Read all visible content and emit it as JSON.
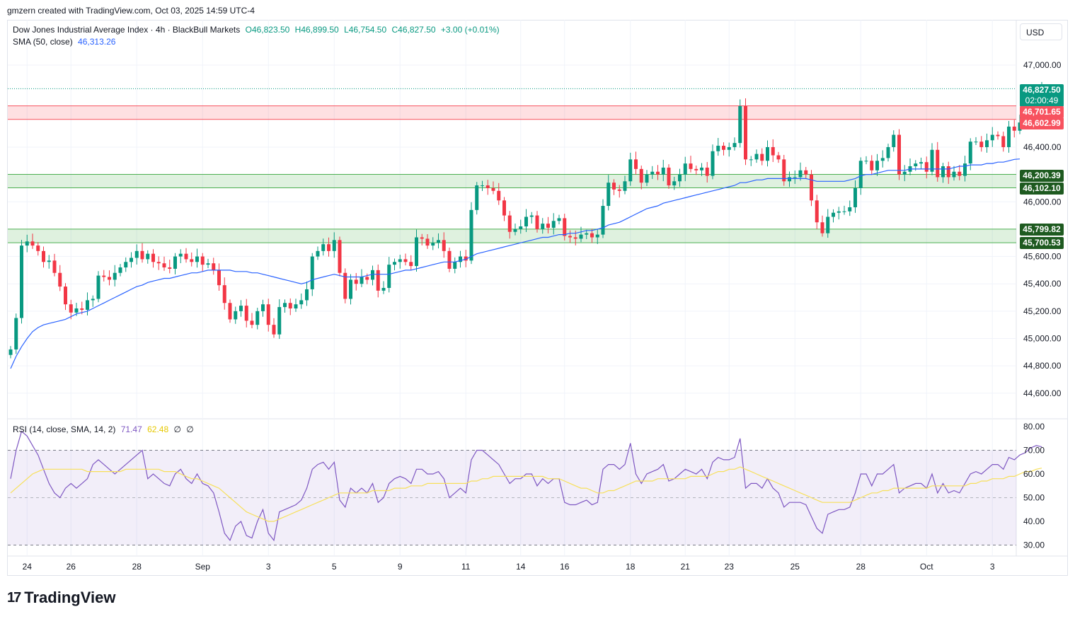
{
  "header": {
    "attribution": "gmzern created with TradingView.com, Oct 03, 2025 14:59 UTC-4"
  },
  "legend": {
    "symbol": "Dow Jones Industrial Average Index · 4h · BlackBull Markets",
    "open": "O46,823.50",
    "high": "H46,899.50",
    "low": "L46,754.50",
    "close": "C46,827.50",
    "change": "+3.00 (+0.01%)",
    "sma_label": "SMA (50, close)",
    "sma_value": "46,313.26",
    "rsi_label": "RSI (14, close, SMA, 14, 2)",
    "rsi_value": "71.47",
    "rsi_sma_value": "62.48",
    "rsi_extra1": "∅",
    "rsi_extra2": "∅"
  },
  "currency": "USD",
  "price_tags": {
    "last_price": "46,827.50",
    "countdown": "02:00:49",
    "res_top": "46,701.65",
    "res_bottom": "46,602.99",
    "sup1_top": "46,200.39",
    "sup1_bottom": "46,102.10",
    "sup2_top": "45,799.82",
    "sup2_bottom": "45,700.53"
  },
  "brand": {
    "name": "TradingView"
  },
  "chart_data": [
    {
      "type": "candlestick",
      "title": "Dow Jones Industrial Average Index · 4h · BlackBull Markets",
      "ylim": [
        44400,
        47200
      ],
      "y_ticks": [
        {
          "value": 47000,
          "label": "47,000.00"
        },
        {
          "value": 46400,
          "label": "46,400.00"
        },
        {
          "value": 46000,
          "label": "46,000.00"
        },
        {
          "value": 45600,
          "label": "45,600.00"
        },
        {
          "value": 45400,
          "label": "45,400.00"
        },
        {
          "value": 45200,
          "label": "45,200.00"
        },
        {
          "value": 45000,
          "label": "45,000.00"
        },
        {
          "value": 44800,
          "label": "44,800.00"
        },
        {
          "value": 44600,
          "label": "44,600.00"
        }
      ],
      "x_ticks": [
        {
          "index": 3,
          "label": "24"
        },
        {
          "index": 11,
          "label": "26"
        },
        {
          "index": 23,
          "label": "28"
        },
        {
          "index": 35,
          "label": "Sep"
        },
        {
          "index": 47,
          "label": "3"
        },
        {
          "index": 59,
          "label": "5"
        },
        {
          "index": 71,
          "label": "9"
        },
        {
          "index": 83,
          "label": "11"
        },
        {
          "index": 93,
          "label": "14"
        },
        {
          "index": 101,
          "label": "16"
        },
        {
          "index": 113,
          "label": "18"
        },
        {
          "index": 123,
          "label": "21"
        },
        {
          "index": 131,
          "label": "23"
        },
        {
          "index": 143,
          "label": "25"
        },
        {
          "index": 155,
          "label": "28"
        },
        {
          "index": 167,
          "label": "Oct"
        },
        {
          "index": 179,
          "label": "3"
        }
      ],
      "bands": [
        {
          "name": "resistance",
          "top": 46701.65,
          "bottom": 46602.99,
          "color": "#f7525f"
        },
        {
          "name": "support-1",
          "top": 46200.39,
          "bottom": 46102.1,
          "color": "#4caf50"
        },
        {
          "name": "support-2",
          "top": 45799.82,
          "bottom": 45700.53,
          "color": "#4caf50"
        }
      ],
      "last_price": 46827.5,
      "up_color": "#089981",
      "down_color": "#f23645",
      "sma_color": "#2962ff",
      "closes": [
        44920,
        45150,
        45680,
        45710,
        45680,
        45640,
        45560,
        45570,
        45480,
        45380,
        45250,
        45190,
        45220,
        45210,
        45280,
        45290,
        45460,
        45450,
        45430,
        45480,
        45520,
        45560,
        45590,
        45640,
        45580,
        45620,
        45560,
        45550,
        45520,
        45510,
        45600,
        45620,
        45580,
        45560,
        45600,
        45540,
        45550,
        45500,
        45390,
        45260,
        45140,
        45200,
        45240,
        45130,
        45100,
        45200,
        45250,
        45100,
        45030,
        45230,
        45260,
        45220,
        45250,
        45280,
        45360,
        45600,
        45640,
        45690,
        45640,
        45720,
        45480,
        45290,
        45430,
        45400,
        45450,
        45430,
        45500,
        45350,
        45370,
        45540,
        45560,
        45580,
        45560,
        45530,
        45740,
        45730,
        45680,
        45700,
        45720,
        45640,
        45510,
        45560,
        45600,
        45570,
        45940,
        46120,
        46120,
        46100,
        46080,
        46010,
        45900,
        45780,
        45800,
        45820,
        45890,
        45900,
        45800,
        45840,
        45810,
        45860,
        45880,
        45750,
        45740,
        45730,
        45760,
        45770,
        45740,
        45760,
        45970,
        46140,
        46090,
        46080,
        46150,
        46310,
        46240,
        46140,
        46200,
        46220,
        46200,
        46250,
        46120,
        46150,
        46200,
        46280,
        46240,
        46230,
        46250,
        46190,
        46370,
        46410,
        46380,
        46400,
        46430,
        46700,
        46310,
        46310,
        46350,
        46300,
        46400,
        46340,
        46310,
        46150,
        46180,
        46180,
        46230,
        46200,
        46010,
        45850,
        45770,
        45890,
        45920,
        45930,
        45930,
        45960,
        46100,
        46300,
        46300,
        46230,
        46300,
        46320,
        46400,
        46490,
        46200,
        46220,
        46260,
        46280,
        46290,
        46220,
        46380,
        46180,
        46260,
        46180,
        46220,
        46190,
        46280,
        46440,
        46440,
        46400,
        46450,
        46490,
        46480,
        46400,
        46550,
        46520,
        46580,
        46620,
        46720,
        46800,
        46827.5
      ],
      "sma": [
        44780,
        44870,
        44940,
        45000,
        45050,
        45080,
        45100,
        45110,
        45120,
        45130,
        45140,
        45160,
        45180,
        45190,
        45200,
        45220,
        45240,
        45260,
        45280,
        45300,
        45320,
        45340,
        45360,
        45380,
        45390,
        45410,
        45420,
        45430,
        45440,
        45440,
        45450,
        45460,
        45470,
        45480,
        45480,
        45490,
        45500,
        45500,
        45500,
        45500,
        45500,
        45490,
        45490,
        45490,
        45480,
        45480,
        45470,
        45460,
        45450,
        45440,
        45430,
        45420,
        45410,
        45400,
        45410,
        45430,
        45440,
        45450,
        45460,
        45470,
        45460,
        45450,
        45450,
        45450,
        45450,
        45460,
        45470,
        45470,
        45470,
        45470,
        45480,
        45490,
        45500,
        45500,
        45510,
        45520,
        45530,
        45540,
        45550,
        45560,
        45560,
        45560,
        45570,
        45580,
        45600,
        45620,
        45630,
        45640,
        45650,
        45660,
        45670,
        45680,
        45690,
        45700,
        45710,
        45720,
        45730,
        45740,
        45740,
        45750,
        45760,
        45760,
        45770,
        45770,
        45780,
        45790,
        45790,
        45800,
        45810,
        45830,
        45840,
        45850,
        45870,
        45890,
        45910,
        45930,
        45950,
        45960,
        45970,
        45990,
        46000,
        46010,
        46020,
        46030,
        46040,
        46050,
        46060,
        46070,
        46080,
        46090,
        46100,
        46110,
        46120,
        46140,
        46140,
        46150,
        46160,
        46160,
        46170,
        46170,
        46170,
        46170,
        46170,
        46170,
        46170,
        46170,
        46160,
        46150,
        46150,
        46150,
        46150,
        46150,
        46150,
        46160,
        46170,
        46190,
        46200,
        46200,
        46210,
        46220,
        46230,
        46230,
        46230,
        46230,
        46240,
        46240,
        46240,
        46240,
        46240,
        46240,
        46240,
        46240,
        46250,
        46260,
        46260,
        46270,
        46270,
        46270,
        46280,
        46280,
        46290,
        46290,
        46300,
        46310,
        46313.26
      ]
    },
    {
      "type": "line",
      "title": "RSI (14, close, SMA, 14, 2)",
      "ylim": [
        26,
        84
      ],
      "y_ticks": [
        {
          "value": 80,
          "label": "80.00"
        },
        {
          "value": 70,
          "label": "70.00"
        },
        {
          "value": 60,
          "label": "60.00"
        },
        {
          "value": 50,
          "label": "50.00"
        },
        {
          "value": 40,
          "label": "40.00"
        },
        {
          "value": 30,
          "label": "30.00"
        }
      ],
      "bands": {
        "upper": 70,
        "lower": 30,
        "middle": 50
      },
      "series": [
        {
          "name": "RSI",
          "color": "#7e57c2",
          "values": [
            58,
            70,
            78,
            76,
            72,
            68,
            62,
            56,
            52,
            50,
            54,
            56,
            54,
            56,
            58,
            64,
            66,
            64,
            62,
            60,
            62,
            64,
            66,
            68,
            70,
            58,
            60,
            58,
            56,
            55,
            60,
            62,
            58,
            56,
            60,
            56,
            55,
            52,
            44,
            35,
            32,
            38,
            40,
            34,
            33,
            40,
            45,
            35,
            32,
            44,
            45,
            46,
            47,
            49,
            54,
            62,
            64,
            65,
            62,
            65,
            49,
            46,
            54,
            52,
            54,
            52,
            56,
            48,
            50,
            56,
            58,
            59,
            58,
            56,
            62,
            62,
            60,
            60,
            61,
            58,
            50,
            52,
            54,
            52,
            66,
            70,
            70,
            68,
            66,
            64,
            60,
            56,
            58,
            58,
            60,
            60,
            55,
            58,
            56,
            58,
            58,
            48,
            47,
            47,
            48,
            49,
            47,
            48,
            62,
            64,
            64,
            62,
            64,
            73,
            60,
            56,
            60,
            61,
            62,
            64,
            57,
            58,
            60,
            62,
            61,
            60,
            62,
            58,
            65,
            67,
            66,
            66,
            67,
            75,
            54,
            56,
            56,
            54,
            58,
            54,
            52,
            46,
            48,
            48,
            48,
            47,
            42,
            37,
            35,
            43,
            44,
            45,
            45,
            46,
            52,
            60,
            60,
            55,
            60,
            60,
            62,
            64,
            52,
            54,
            55,
            56,
            56,
            54,
            60,
            52,
            56,
            52,
            53,
            52,
            56,
            60,
            61,
            60,
            62,
            64,
            64,
            62,
            67,
            66,
            68,
            69,
            71,
            72,
            71.47
          ]
        },
        {
          "name": "RSI-based MA",
          "color": "#f7e05a",
          "values": [
            52,
            54,
            56,
            58,
            60,
            61,
            62,
            62,
            62,
            62,
            62,
            62,
            62,
            62,
            61,
            61,
            61,
            61,
            61,
            61,
            61,
            62,
            62,
            62,
            62,
            62,
            62,
            62,
            61,
            61,
            61,
            60,
            59,
            58,
            58,
            57,
            56,
            55,
            54,
            52,
            50,
            48,
            46,
            44,
            43,
            42,
            41,
            40,
            40,
            41,
            42,
            43,
            44,
            45,
            46,
            47,
            48,
            49,
            50,
            51,
            52,
            52,
            52,
            52,
            52,
            52,
            53,
            53,
            53,
            53,
            54,
            54,
            54,
            55,
            55,
            55,
            56,
            56,
            56,
            56,
            56,
            56,
            56,
            56,
            57,
            57,
            58,
            58,
            59,
            59,
            59,
            59,
            59,
            59,
            59,
            59,
            59,
            59,
            58,
            58,
            58,
            57,
            56,
            55,
            54,
            54,
            53,
            52,
            52,
            53,
            53,
            54,
            55,
            56,
            57,
            57,
            57,
            57,
            58,
            58,
            58,
            58,
            58,
            58,
            59,
            59,
            59,
            59,
            60,
            61,
            61,
            62,
            62,
            63,
            62,
            61,
            60,
            59,
            58,
            57,
            56,
            55,
            54,
            53,
            52,
            51,
            50,
            49,
            48,
            48,
            48,
            48,
            48,
            48,
            49,
            50,
            51,
            52,
            52,
            53,
            53,
            54,
            54,
            54,
            54,
            54,
            54,
            54,
            55,
            55,
            55,
            55,
            55,
            55,
            55,
            56,
            56,
            57,
            57,
            58,
            58,
            58,
            59,
            59,
            60,
            61,
            61,
            62,
            62.48
          ]
        }
      ]
    }
  ]
}
